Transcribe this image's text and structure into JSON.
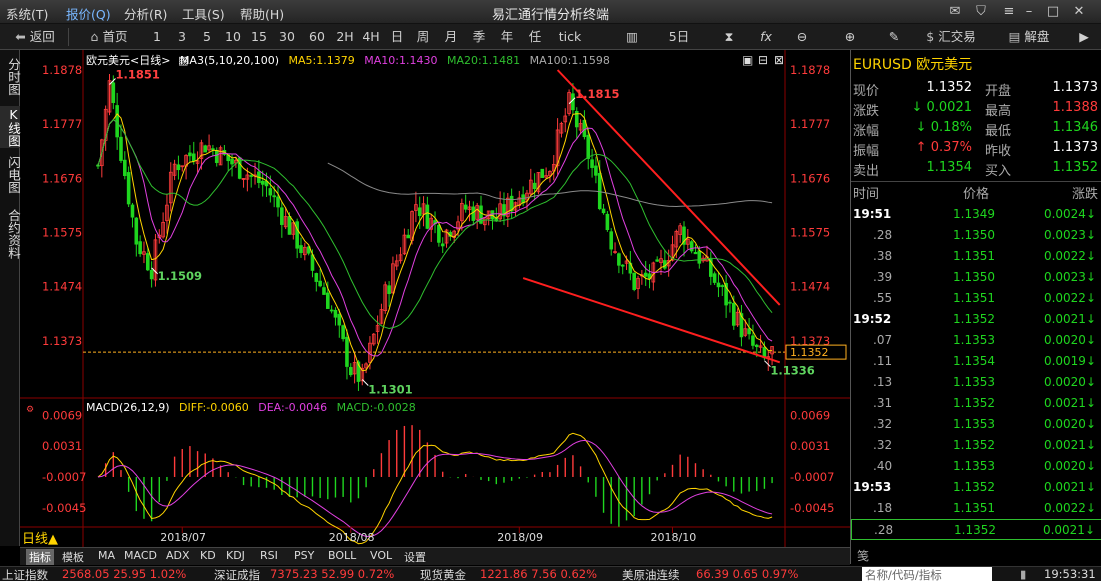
{
  "menu": {
    "items": [
      "系统(T)",
      "报价(Q)",
      "分析(R)",
      "工具(S)",
      "帮助(H)"
    ],
    "title": "易汇通行情分析终端"
  },
  "toolbar": {
    "back": "返回",
    "home": "首页",
    "periods": [
      "1",
      "3",
      "5",
      "10",
      "15",
      "30",
      "60",
      "2H",
      "4H",
      "日",
      "周",
      "月",
      "季",
      "年",
      "任",
      "tick"
    ],
    "count": "5日",
    "trade": "汇交易",
    "unlock": "解盘"
  },
  "left_rail": [
    "分时图",
    "K线图",
    "闪电图",
    "合约资料"
  ],
  "info_bar": {
    "symbol": "欧元美元<日线>",
    "ma3": "MA3(5,10,20,100)",
    "ma5": "MA5:1.1379",
    "ma10": "MA10:1.1430",
    "ma20": "MA20:1.1481",
    "ma100": "MA100:1.1598"
  },
  "macd_bar": {
    "name": "MACD(26,12,9)",
    "diff": "DIFF:-0.0060",
    "dea": "DEA:-0.0046",
    "macd": "MACD:-0.0028"
  },
  "price_axis": [
    "1.1878",
    "1.1777",
    "1.1676",
    "1.1575",
    "1.1474",
    "1.1373"
  ],
  "macd_axis": [
    "0.0069",
    "0.0031",
    "-0.0007",
    "-0.0045"
  ],
  "current_price": "1.1352",
  "annotations": {
    "high1": "1.1851",
    "low1": "1.1509",
    "low2": "1.1301",
    "high2": "1.1815",
    "low3": "1.1336"
  },
  "months": [
    "2018/07",
    "2018/08",
    "2018/09",
    "2018/10"
  ],
  "period_tab": "日线▲",
  "bottom_tabs": [
    "指标",
    "模板",
    "MA",
    "MACD",
    "ADX",
    "KD",
    "KDJ",
    "RSI",
    "PSY",
    "BOLL",
    "VOL",
    "设置"
  ],
  "ticker": {
    "sh_name": "上证指数",
    "sh_vals": "2568.05 25.95 1.02%",
    "sz_name": "深证成指",
    "sz_vals": "7375.23 52.99 0.72%",
    "gold_name": "现货黄金",
    "gold_vals": "1221.86 7.56 0.62%",
    "oil_name": "美原油连续",
    "oil_vals": "66.39 0.65 0.97%",
    "search_placeholder": "名称/代码/指标",
    "time": "19:53:31"
  },
  "colors": {
    "up": "#ff3b3b",
    "down": "#1fd61f",
    "ma5": "#ffd400",
    "ma10": "#e040e0",
    "ma20": "#2fbf2f",
    "ma100": "#8a8a8a",
    "accent": "#ffd400"
  },
  "quote": {
    "symbol": "EURUSD 欧元美元",
    "rows": [
      {
        "l1": "现价",
        "v1": "1.1352",
        "c1": "white",
        "l2": "开盘",
        "v2": "1.1373",
        "c2": "white"
      },
      {
        "l1": "涨跌",
        "v1": "↓ 0.0021",
        "c1": "green",
        "l2": "最高",
        "v2": "1.1388",
        "c2": "red"
      },
      {
        "l1": "涨幅",
        "v1": "↓ 0.18%",
        "c1": "green",
        "l2": "最低",
        "v2": "1.1346",
        "c2": "green"
      },
      {
        "l1": "振幅",
        "v1": "↑ 0.37%",
        "c1": "red",
        "l2": "昨收",
        "v2": "1.1373",
        "c2": "white"
      },
      {
        "l1": "卖出",
        "v1": "1.1354",
        "c1": "green",
        "l2": "买入",
        "v2": "1.1352",
        "c2": "green"
      }
    ],
    "trade_header": {
      "time": "时间",
      "price": "价格",
      "chg": "涨跌"
    },
    "trades": [
      {
        "t": "19:51",
        "p": "1.1349",
        "c": "0.0024↓",
        "bold": true
      },
      {
        "t": ".28",
        "p": "1.1350",
        "c": "0.0023↓"
      },
      {
        "t": ".38",
        "p": "1.1351",
        "c": "0.0022↓"
      },
      {
        "t": ".39",
        "p": "1.1350",
        "c": "0.0023↓"
      },
      {
        "t": ".55",
        "p": "1.1351",
        "c": "0.0022↓"
      },
      {
        "t": "19:52",
        "p": "1.1352",
        "c": "0.0021↓",
        "bold": true
      },
      {
        "t": ".07",
        "p": "1.1353",
        "c": "0.0020↓"
      },
      {
        "t": ".11",
        "p": "1.1354",
        "c": "0.0019↓"
      },
      {
        "t": ".13",
        "p": "1.1353",
        "c": "0.0020↓"
      },
      {
        "t": ".31",
        "p": "1.1352",
        "c": "0.0021↓"
      },
      {
        "t": ".32",
        "p": "1.1353",
        "c": "0.0020↓"
      },
      {
        "t": ".32",
        "p": "1.1352",
        "c": "0.0021↓"
      },
      {
        "t": ".40",
        "p": "1.1353",
        "c": "0.0020↓"
      },
      {
        "t": "19:53",
        "p": "1.1352",
        "c": "0.0021↓",
        "bold": true
      },
      {
        "t": ".18",
        "p": "1.1351",
        "c": "0.0022↓"
      },
      {
        "t": ".28",
        "p": "1.1352",
        "c": "0.0021↓",
        "sel": true
      }
    ],
    "footer": "笺"
  }
}
